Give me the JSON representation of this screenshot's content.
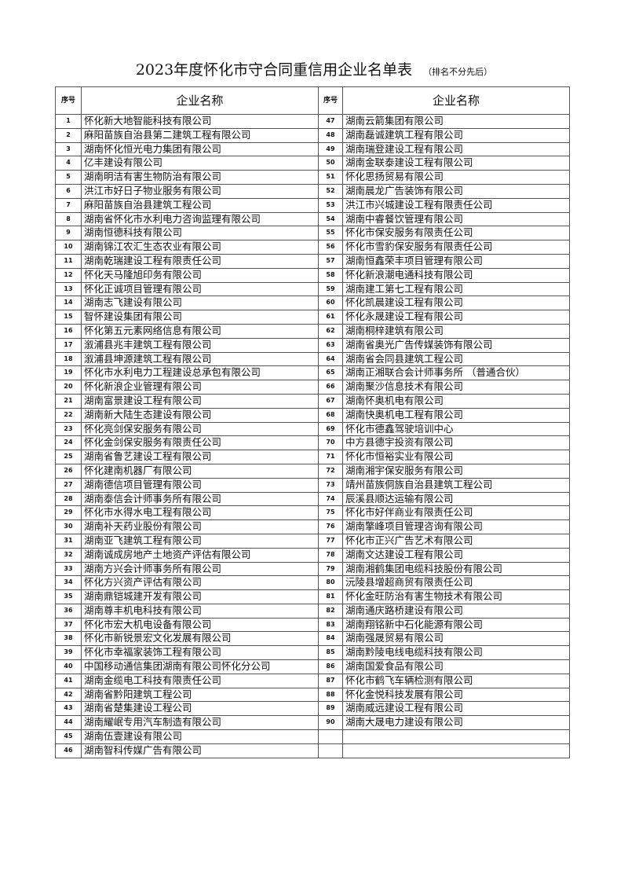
{
  "title": "2023年度怀化市守合同重信用企业名单表",
  "title_note": "（排名不分先后）",
  "headers": {
    "seq": "序号",
    "name": "企业名称"
  },
  "left": [
    {
      "no": "1",
      "name": "怀化新大地智能科技有限公司"
    },
    {
      "no": "2",
      "name": "麻阳苗族自治县第二建筑工程有限公司"
    },
    {
      "no": "3",
      "name": "湖南怀化恒光电力集团有限公司"
    },
    {
      "no": "4",
      "name": "亿丰建设有限公司"
    },
    {
      "no": "5",
      "name": "湖南明洁有害生物防治有限公司"
    },
    {
      "no": "6",
      "name": "洪江市好日子物业服务有限公司"
    },
    {
      "no": "7",
      "name": "麻阳苗族自治县建筑工程公司"
    },
    {
      "no": "8",
      "name": "湖南省怀化市水利电力咨询监理有限公司"
    },
    {
      "no": "9",
      "name": "湖南恒德科技有限公司"
    },
    {
      "no": "10",
      "name": "湖南锦江农汇生态农业有限公司"
    },
    {
      "no": "11",
      "name": "湖南乾瑞建设工程有限责任公司"
    },
    {
      "no": "12",
      "name": "怀化天马隆旭印务有限公司"
    },
    {
      "no": "13",
      "name": "怀化正诚项目管理有限公司"
    },
    {
      "no": "14",
      "name": "湖南志飞建设有限公司"
    },
    {
      "no": "15",
      "name": "智怀建设集团有限公司"
    },
    {
      "no": "16",
      "name": "怀化第五元素网络信息有限公司"
    },
    {
      "no": "17",
      "name": "溆浦县兆丰建筑工程有限公司"
    },
    {
      "no": "18",
      "name": "溆浦县坤源建筑工程有限公司"
    },
    {
      "no": "19",
      "name": "怀化市水利电力工程建设总承包有限公司"
    },
    {
      "no": "20",
      "name": "怀化新浪企业管理有限公司"
    },
    {
      "no": "21",
      "name": "湖南富景建设工程有限公司"
    },
    {
      "no": "22",
      "name": "湖南新大陆生态建设有限公司"
    },
    {
      "no": "23",
      "name": "怀化亮剑保安服务有限公司"
    },
    {
      "no": "24",
      "name": "怀化金剑保安服务有限责任公司"
    },
    {
      "no": "25",
      "name": "湖南省鲁艺建设工程有限公司"
    },
    {
      "no": "26",
      "name": "怀化建南机器厂有限公司"
    },
    {
      "no": "27",
      "name": "湖南德信项目管理有限公司"
    },
    {
      "no": "28",
      "name": "湖南泰信会计师事务所有限公司"
    },
    {
      "no": "29",
      "name": "怀化市水得水电工程有限公司"
    },
    {
      "no": "30",
      "name": "湖南补天药业股份有限公司"
    },
    {
      "no": "31",
      "name": "湖南亚飞建筑工程有限公司"
    },
    {
      "no": "32",
      "name": "湖南诚成房地产土地资产评估有限公司"
    },
    {
      "no": "33",
      "name": "湖南方兴会计师事务所有限公司"
    },
    {
      "no": "34",
      "name": "怀化方兴资产评估有限公司"
    },
    {
      "no": "35",
      "name": "湖南鼎铠城建开发有限公司"
    },
    {
      "no": "36",
      "name": "湖南尊丰机电科技有限公司"
    },
    {
      "no": "37",
      "name": "怀化市宏大机电设备有限公司"
    },
    {
      "no": "38",
      "name": "怀化市新锐景宏文化发展有限公司"
    },
    {
      "no": "39",
      "name": "怀化市幸福家装饰工程有限公司"
    },
    {
      "no": "40",
      "name": "中国移动通信集团湖南有限公司怀化分公司"
    },
    {
      "no": "41",
      "name": "湖南金缆电工科技有限责任公司"
    },
    {
      "no": "42",
      "name": "湖南省黔阳建筑工程公司"
    },
    {
      "no": "43",
      "name": "湖南省楚集建设工程公司"
    },
    {
      "no": "44",
      "name": "湖南耀岷专用汽车制造有限公司"
    },
    {
      "no": "45",
      "name": "湖南伍壹建设有限公司"
    },
    {
      "no": "46",
      "name": "湖南智科传媒广告有限公司"
    }
  ],
  "right": [
    {
      "no": "47",
      "name": "湖南云箭集团有限公司"
    },
    {
      "no": "48",
      "name": "湖南磊诚建筑工程有限公司"
    },
    {
      "no": "49",
      "name": "湖南瑞登建设工程有限公司"
    },
    {
      "no": "50",
      "name": "湖南金联泰建设工程有限公司"
    },
    {
      "no": "51",
      "name": "怀化思扬贸易有限公司"
    },
    {
      "no": "52",
      "name": "湖南晨龙广告装饰有限公司"
    },
    {
      "no": "53",
      "name": "洪江市兴城建设工程有限责任公司"
    },
    {
      "no": "54",
      "name": "湖南中睿餐饮管理有限公司"
    },
    {
      "no": "55",
      "name": "怀化市保安服务有限责任公司"
    },
    {
      "no": "56",
      "name": "怀化市雪豹保安服务有限责任公司"
    },
    {
      "no": "57",
      "name": "湖南恒鑫荣丰项目管理有限公司"
    },
    {
      "no": "58",
      "name": "怀化新浪潮电通科技有限公司"
    },
    {
      "no": "59",
      "name": "湖南建工第七工程有限公司"
    },
    {
      "no": "60",
      "name": "怀化凯晨建设工程有限公司"
    },
    {
      "no": "61",
      "name": "怀化永晟建设工程有限公司"
    },
    {
      "no": "62",
      "name": "湖南桐梓建筑有限公司"
    },
    {
      "no": "63",
      "name": "湖南省奥光广告传媒装饰有限公司"
    },
    {
      "no": "64",
      "name": "湖南省会同县建筑工程公司"
    },
    {
      "no": "65",
      "name": "湖南正湘联合会计师事务所 （普通合伙）"
    },
    {
      "no": "66",
      "name": "湖南聚沙信息技术有限公司"
    },
    {
      "no": "67",
      "name": "湖南怀奥机电有限公司"
    },
    {
      "no": "68",
      "name": "湖南快奥机电工程有限公司"
    },
    {
      "no": "69",
      "name": "怀化市德鑫驾驶培训中心"
    },
    {
      "no": "70",
      "name": "中方县德宇投资有限公司"
    },
    {
      "no": "71",
      "name": "怀化市恒裕实业有限公司"
    },
    {
      "no": "72",
      "name": "湖南湘宇保安服务有限公司"
    },
    {
      "no": "73",
      "name": "靖州苗族侗族自治县建筑工程公司"
    },
    {
      "no": "74",
      "name": "辰溪县顺达运输有限公司"
    },
    {
      "no": "75",
      "name": "怀化市好伴商业有限责任公司"
    },
    {
      "no": "76",
      "name": "湖南擎峰项目管理咨询有限公司"
    },
    {
      "no": "77",
      "name": "怀化市正兴广告艺术有限公司"
    },
    {
      "no": "78",
      "name": "湖南文达建设工程有限公司"
    },
    {
      "no": "79",
      "name": "湖南湘鹤集团电缆科技股份有限公司"
    },
    {
      "no": "80",
      "name": "沅陵县增超商贸有限责任公司"
    },
    {
      "no": "81",
      "name": "怀化金旺防治有害生物技术有限公司"
    },
    {
      "no": "82",
      "name": "湖南通庆路桥建设有限公司"
    },
    {
      "no": "83",
      "name": "湖南翔铭新中石化能源有限公司"
    },
    {
      "no": "84",
      "name": "湖南强晟贸易有限公司"
    },
    {
      "no": "85",
      "name": "湖南黔陵电线电缆科技有限公司"
    },
    {
      "no": "86",
      "name": "湖南国爱食品有限公司"
    },
    {
      "no": "87",
      "name": "怀化市鹤飞车辆检测有限公司"
    },
    {
      "no": "88",
      "name": "怀化金悦科技发展有限公司"
    },
    {
      "no": "89",
      "name": "湖南威远建设工程有限公司"
    },
    {
      "no": "90",
      "name": "湖南大晟电力建设有限公司"
    }
  ]
}
